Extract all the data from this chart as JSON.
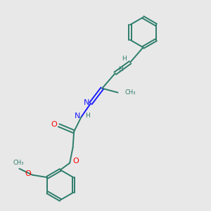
{
  "bg_color": "#e8e8e8",
  "bond_color": "#2d7d6b",
  "n_color": "#1a1aff",
  "o_color": "#ff0000",
  "font_size": 7.5,
  "line_width": 1.4,
  "figsize": [
    3.0,
    3.0
  ],
  "dpi": 100,
  "xlim": [
    0,
    10
  ],
  "ylim": [
    0,
    10
  ]
}
